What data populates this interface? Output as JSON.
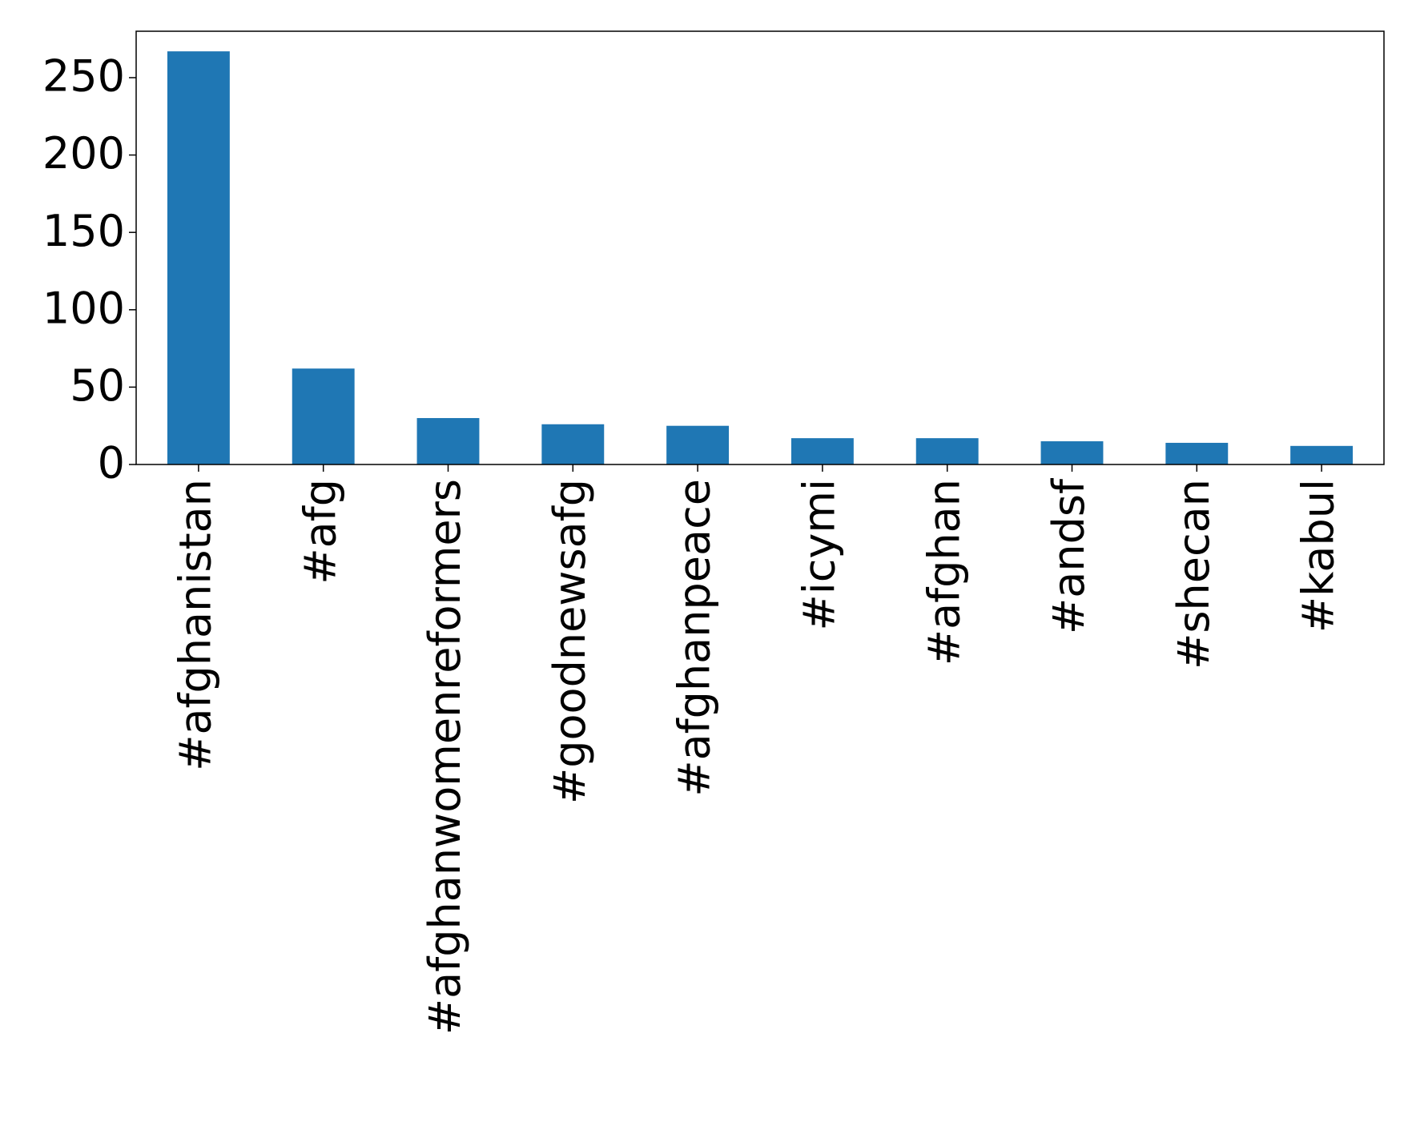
{
  "chart_data": {
    "type": "bar",
    "categories": [
      "#afghanistan",
      "#afg",
      "#afghanwomenreformers",
      "#goodnewsafg",
      "#afghanpeace",
      "#icymi",
      "#afghan",
      "#andsf",
      "#shecan",
      "#kabul"
    ],
    "values": [
      267,
      62,
      30,
      26,
      25,
      17,
      17,
      15,
      14,
      12
    ],
    "color": "#1f77b4",
    "ylim": [
      0,
      280
    ],
    "yticks": [
      0,
      50,
      100,
      150,
      200,
      250
    ],
    "grid": false
  }
}
